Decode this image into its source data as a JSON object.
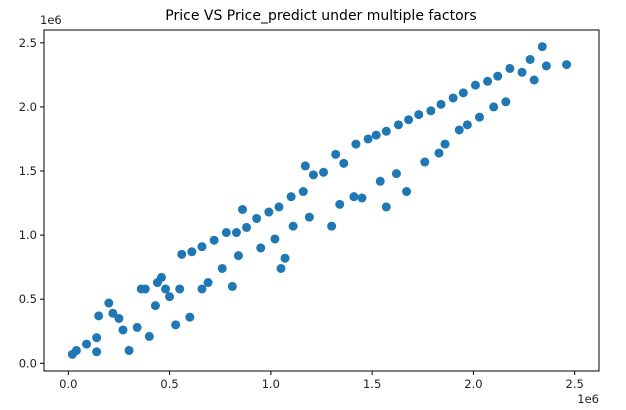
{
  "chart_data": {
    "type": "scatter",
    "title": "Price VS Price_predict under multiple factors",
    "xlabel": "",
    "ylabel": "",
    "x_offset_label": "1e6",
    "y_offset_label": "1e6",
    "xlim": [
      -0.12,
      2.62
    ],
    "ylim": [
      -0.06,
      2.6
    ],
    "x_ticks": [
      0.0,
      0.5,
      1.0,
      1.5,
      2.0,
      2.5
    ],
    "x_tick_labels": [
      "0.0",
      "0.5",
      "1.0",
      "1.5",
      "2.0",
      "2.5"
    ],
    "y_ticks": [
      0.0,
      0.5,
      1.0,
      1.5,
      2.0,
      2.5
    ],
    "y_tick_labels": [
      "0.0",
      "0.5",
      "1.0",
      "1.5",
      "2.0",
      "2.5"
    ],
    "grid": false,
    "marker_color": "#1f77b4",
    "series": [
      {
        "points": [
          [
            0.02,
            0.07
          ],
          [
            0.04,
            0.1
          ],
          [
            0.09,
            0.15
          ],
          [
            0.14,
            0.09
          ],
          [
            0.14,
            0.2
          ],
          [
            0.15,
            0.37
          ],
          [
            0.2,
            0.47
          ],
          [
            0.3,
            0.1
          ],
          [
            0.27,
            0.26
          ],
          [
            0.25,
            0.35
          ],
          [
            0.22,
            0.39
          ],
          [
            0.34,
            0.28
          ],
          [
            0.38,
            0.58
          ],
          [
            0.43,
            0.45
          ],
          [
            0.46,
            0.67
          ],
          [
            0.5,
            0.52
          ],
          [
            0.55,
            0.58
          ],
          [
            0.4,
            0.21
          ],
          [
            0.53,
            0.3
          ],
          [
            0.56,
            0.85
          ],
          [
            0.61,
            0.87
          ],
          [
            0.44,
            0.63
          ],
          [
            0.48,
            0.58
          ],
          [
            0.6,
            0.36
          ],
          [
            0.66,
            0.91
          ],
          [
            0.72,
            0.96
          ],
          [
            0.78,
            1.02
          ],
          [
            0.66,
            0.58
          ],
          [
            0.69,
            0.63
          ],
          [
            0.76,
            0.74
          ],
          [
            0.81,
            0.6
          ],
          [
            0.83,
            1.02
          ],
          [
            0.88,
            1.06
          ],
          [
            0.84,
            0.84
          ],
          [
            0.93,
            1.13
          ],
          [
            0.99,
            1.18
          ],
          [
            1.04,
            1.22
          ],
          [
            0.95,
            0.9
          ],
          [
            1.02,
            0.97
          ],
          [
            1.07,
            0.82
          ],
          [
            1.1,
            1.3
          ],
          [
            1.16,
            1.34
          ],
          [
            1.21,
            1.47
          ],
          [
            1.26,
            1.49
          ],
          [
            1.11,
            1.07
          ],
          [
            1.19,
            1.14
          ],
          [
            1.3,
            1.07
          ],
          [
            1.32,
            1.63
          ],
          [
            1.36,
            1.56
          ],
          [
            1.42,
            1.71
          ],
          [
            1.48,
            1.75
          ],
          [
            1.34,
            1.24
          ],
          [
            1.41,
            1.3
          ],
          [
            1.45,
            1.29
          ],
          [
            1.52,
            1.78
          ],
          [
            1.57,
            1.81
          ],
          [
            1.63,
            1.86
          ],
          [
            1.54,
            1.42
          ],
          [
            1.62,
            1.48
          ],
          [
            1.68,
            1.9
          ],
          [
            1.73,
            1.94
          ],
          [
            1.76,
            1.57
          ],
          [
            1.83,
            1.64
          ],
          [
            1.79,
            1.97
          ],
          [
            1.84,
            2.02
          ],
          [
            1.9,
            2.07
          ],
          [
            1.86,
            1.71
          ],
          [
            1.93,
            1.82
          ],
          [
            1.95,
            2.11
          ],
          [
            2.01,
            2.17
          ],
          [
            2.07,
            2.2
          ],
          [
            1.97,
            1.86
          ],
          [
            2.03,
            1.92
          ],
          [
            2.12,
            2.24
          ],
          [
            2.18,
            2.3
          ],
          [
            2.16,
            2.04
          ],
          [
            2.24,
            2.27
          ],
          [
            2.28,
            2.37
          ],
          [
            2.34,
            2.47
          ],
          [
            2.3,
            2.21
          ],
          [
            2.36,
            2.32
          ],
          [
            2.46,
            2.33
          ],
          [
            1.57,
            1.22
          ],
          [
            1.67,
            1.34
          ],
          [
            0.86,
            1.2
          ],
          [
            1.17,
            1.54
          ],
          [
            2.1,
            2.0
          ],
          [
            0.36,
            0.58
          ],
          [
            1.05,
            0.74
          ]
        ]
      }
    ]
  }
}
